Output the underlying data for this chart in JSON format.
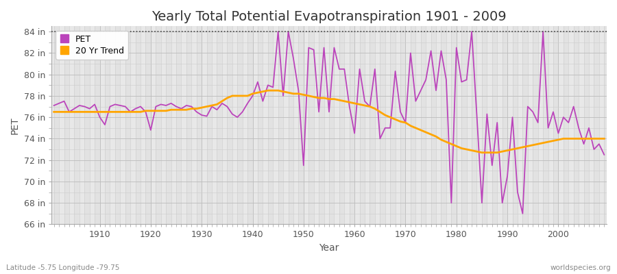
{
  "title": "Yearly Total Potential Evapotranspiration 1901 - 2009",
  "xlabel": "Year",
  "ylabel": "PET",
  "bottom_left_label": "Latitude -5.75 Longitude -79.75",
  "bottom_right_label": "worldspecies.org",
  "ylim": [
    66,
    84.5
  ],
  "ytick_labels": [
    "66 in",
    "68 in",
    "70 in",
    "72 in",
    "74 in",
    "76 in",
    "78 in",
    "80 in",
    "82 in",
    "84 in"
  ],
  "ytick_values": [
    66,
    68,
    70,
    72,
    74,
    76,
    78,
    80,
    82,
    84
  ],
  "hline_y": 84,
  "pet_color": "#BB44BB",
  "trend_color": "#FFA500",
  "outer_bg": "#FFFFFF",
  "plot_bg_color": "#E8E8E8",
  "minor_grid_color": "#D8D8D8",
  "major_grid_color": "#CCCCCC",
  "years": [
    1901,
    1902,
    1903,
    1904,
    1905,
    1906,
    1907,
    1908,
    1909,
    1910,
    1911,
    1912,
    1913,
    1914,
    1915,
    1916,
    1917,
    1918,
    1919,
    1920,
    1921,
    1922,
    1923,
    1924,
    1925,
    1926,
    1927,
    1928,
    1929,
    1930,
    1931,
    1932,
    1933,
    1934,
    1935,
    1936,
    1937,
    1938,
    1939,
    1940,
    1941,
    1942,
    1943,
    1944,
    1945,
    1946,
    1947,
    1948,
    1949,
    1950,
    1951,
    1952,
    1953,
    1954,
    1955,
    1956,
    1957,
    1958,
    1959,
    1960,
    1961,
    1962,
    1963,
    1964,
    1965,
    1966,
    1967,
    1968,
    1969,
    1970,
    1971,
    1972,
    1973,
    1974,
    1975,
    1976,
    1977,
    1978,
    1979,
    1980,
    1981,
    1982,
    1983,
    1984,
    1985,
    1986,
    1987,
    1988,
    1989,
    1990,
    1991,
    1992,
    1993,
    1994,
    1995,
    1996,
    1997,
    1998,
    1999,
    2000,
    2001,
    2002,
    2003,
    2004,
    2005,
    2006,
    2007,
    2008,
    2009
  ],
  "pet_values": [
    77.1,
    77.3,
    77.5,
    76.5,
    76.8,
    77.1,
    77.0,
    76.8,
    77.2,
    76.0,
    75.3,
    77.0,
    77.2,
    77.1,
    77.0,
    76.5,
    76.8,
    77.0,
    76.5,
    74.8,
    77.0,
    77.2,
    77.1,
    77.3,
    77.0,
    76.8,
    77.1,
    77.0,
    76.5,
    76.2,
    76.1,
    77.0,
    76.7,
    77.3,
    77.0,
    76.3,
    76.0,
    76.5,
    77.3,
    78.0,
    79.3,
    77.5,
    79.0,
    78.8,
    84.0,
    78.0,
    84.0,
    81.5,
    78.5,
    71.5,
    82.5,
    82.3,
    76.5,
    82.5,
    76.5,
    82.5,
    80.5,
    80.5,
    77.0,
    74.5,
    80.5,
    77.5,
    77.0,
    80.5,
    74.0,
    75.0,
    75.0,
    80.3,
    76.5,
    75.5,
    82.0,
    77.5,
    78.5,
    79.5,
    82.2,
    78.5,
    82.2,
    79.5,
    68.0,
    82.5,
    79.3,
    79.5,
    84.0,
    76.2,
    68.0,
    76.3,
    71.5,
    75.5,
    68.0,
    70.5,
    76.0,
    69.0,
    67.0,
    77.0,
    76.5,
    75.5,
    84.0,
    75.0,
    76.5,
    74.5,
    76.0,
    75.5,
    77.0,
    75.0,
    73.5,
    75.0,
    73.0,
    73.5,
    72.5
  ],
  "trend_values": [
    76.5,
    76.5,
    76.5,
    76.5,
    76.5,
    76.5,
    76.5,
    76.5,
    76.5,
    76.5,
    76.5,
    76.5,
    76.5,
    76.5,
    76.5,
    76.5,
    76.5,
    76.5,
    76.6,
    76.6,
    76.6,
    76.6,
    76.6,
    76.7,
    76.7,
    76.7,
    76.7,
    76.8,
    76.8,
    76.9,
    77.0,
    77.1,
    77.2,
    77.5,
    77.8,
    78.0,
    78.0,
    78.0,
    78.0,
    78.2,
    78.3,
    78.4,
    78.5,
    78.5,
    78.5,
    78.4,
    78.3,
    78.2,
    78.2,
    78.1,
    78.0,
    77.9,
    77.8,
    77.8,
    77.7,
    77.7,
    77.6,
    77.5,
    77.4,
    77.3,
    77.2,
    77.1,
    77.0,
    76.8,
    76.5,
    76.2,
    76.0,
    75.8,
    75.6,
    75.5,
    75.2,
    75.0,
    74.8,
    74.6,
    74.4,
    74.2,
    73.9,
    73.7,
    73.5,
    73.3,
    73.1,
    73.0,
    72.9,
    72.8,
    72.7,
    72.7,
    72.7,
    72.7,
    72.8,
    72.9,
    73.0,
    73.1,
    73.2,
    73.3,
    73.4,
    73.5,
    73.6,
    73.7,
    73.8,
    73.9,
    74.0,
    74.0,
    74.0,
    74.0,
    74.0,
    74.0,
    74.0,
    74.0,
    74.0
  ],
  "xtick_values": [
    1910,
    1920,
    1930,
    1940,
    1950,
    1960,
    1970,
    1980,
    1990,
    2000
  ],
  "title_fontsize": 14,
  "label_fontsize": 10,
  "tick_fontsize": 9,
  "legend_fontsize": 9
}
